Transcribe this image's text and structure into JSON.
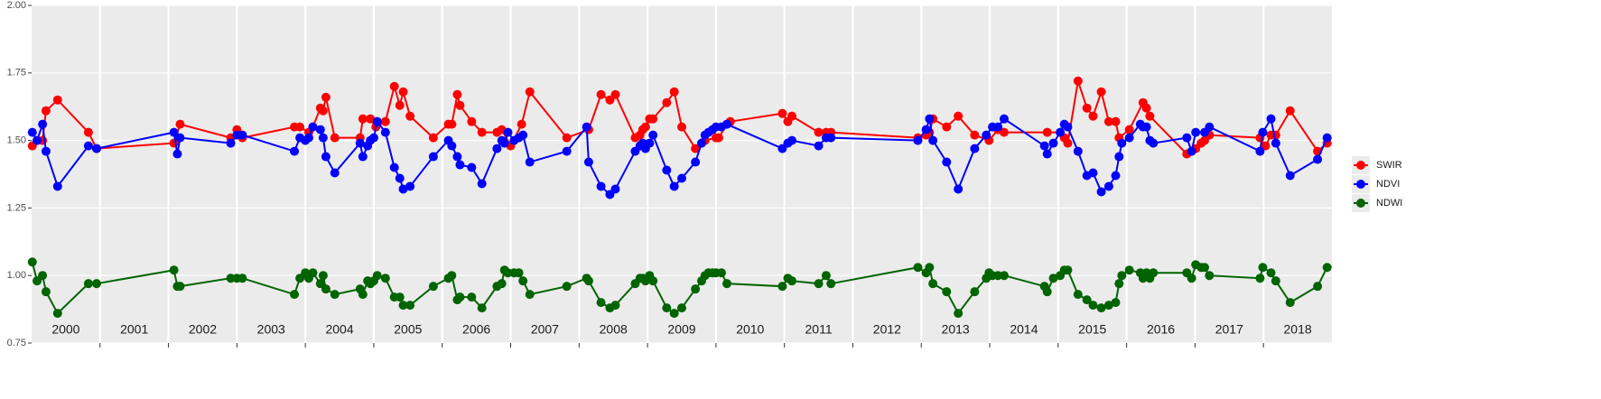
{
  "chart_data": {
    "type": "line",
    "xlim": [
      2000,
      2019
    ],
    "ylim": [
      0.75,
      2.0
    ],
    "yticks": [
      0.75,
      {
        "value": 1.0,
        "label": "1.00"
      },
      1.25,
      {
        "value": 1.5,
        "label": "1.50"
      },
      1.75,
      {
        "value": 2.0,
        "label": "2.00"
      }
    ],
    "xgrid": [
      2001,
      2002,
      2003,
      2004,
      2005,
      2006,
      2007,
      2008,
      2009,
      2010,
      2011,
      2012,
      2013,
      2014,
      2015,
      2016,
      2017,
      2018
    ],
    "xticks": [
      {
        "value": 2000.5,
        "label": "2000"
      },
      {
        "value": 2001.5,
        "label": "2001"
      },
      {
        "value": 2002.5,
        "label": "2002"
      },
      {
        "value": 2003.5,
        "label": "2003"
      },
      {
        "value": 2004.5,
        "label": "2004"
      },
      {
        "value": 2005.5,
        "label": "2005"
      },
      {
        "value": 2006.5,
        "label": "2006"
      },
      {
        "value": 2007.5,
        "label": "2007"
      },
      {
        "value": 2008.5,
        "label": "2008"
      },
      {
        "value": 2009.5,
        "label": "2009"
      },
      {
        "value": 2010.5,
        "label": "2010"
      },
      {
        "value": 2011.5,
        "label": "2011"
      },
      {
        "value": 2012.5,
        "label": "2012"
      },
      {
        "value": 2013.5,
        "label": "2013"
      },
      {
        "value": 2014.5,
        "label": "2014"
      },
      {
        "value": 2015.5,
        "label": "2015"
      },
      {
        "value": 2016.5,
        "label": "2016"
      },
      {
        "value": 2017.5,
        "label": "2017"
      },
      {
        "value": 2018.5,
        "label": "2018"
      }
    ],
    "grid": true,
    "legend": "right",
    "series": [
      {
        "name": "SWIR",
        "color": "#FF0000",
        "x": [
          2000.01,
          2000.08,
          2000.16,
          2000.21,
          2000.38,
          2000.83,
          2000.95,
          2002.08,
          2002.17,
          2002.91,
          2003.0,
          2003.08,
          2003.84,
          2003.92,
          2004.05,
          2004.11,
          2004.22,
          2004.26,
          2004.3,
          2004.43,
          2004.8,
          2004.84,
          2004.95,
          2005.03,
          2005.17,
          2005.3,
          2005.38,
          2005.43,
          2005.53,
          2005.87,
          2006.09,
          2006.14,
          2006.22,
          2006.26,
          2006.43,
          2006.58,
          2006.8,
          2006.87,
          2007.0,
          2007.16,
          2007.28,
          2007.82,
          2008.14,
          2008.32,
          2008.45,
          2008.53,
          2008.82,
          2008.89,
          2008.93,
          2008.97,
          2009.03,
          2009.08,
          2009.28,
          2009.39,
          2009.5,
          2009.7,
          2009.84,
          2010.0,
          2010.04,
          2010.16,
          2010.21,
          2010.97,
          2011.05,
          2011.11,
          2011.5,
          2011.61,
          2011.68,
          2012.95,
          2013.07,
          2013.12,
          2013.17,
          2013.37,
          2013.54,
          2013.78,
          2013.99,
          2014.12,
          2014.21,
          2014.84,
          2015.03,
          2015.09,
          2015.14,
          2015.29,
          2015.42,
          2015.51,
          2015.63,
          2015.74,
          2015.84,
          2015.89,
          2016.04,
          2016.24,
          2016.29,
          2016.34,
          2016.88,
          2017.01,
          2017.09,
          2017.14,
          2017.21,
          2017.95,
          2018.03,
          2018.11,
          2018.18,
          2018.39,
          2018.79,
          2018.93
        ],
        "values": [
          1.48,
          1.5,
          1.5,
          1.61,
          1.65,
          1.53,
          1.47,
          1.49,
          1.56,
          1.51,
          1.54,
          1.51,
          1.55,
          1.55,
          1.53,
          1.55,
          1.62,
          1.61,
          1.66,
          1.51,
          1.51,
          1.58,
          1.58,
          1.55,
          1.57,
          1.7,
          1.63,
          1.68,
          1.59,
          1.51,
          1.56,
          1.56,
          1.67,
          1.63,
          1.57,
          1.53,
          1.53,
          1.54,
          1.48,
          1.56,
          1.68,
          1.51,
          1.54,
          1.67,
          1.65,
          1.67,
          1.51,
          1.52,
          1.54,
          1.55,
          1.58,
          1.58,
          1.64,
          1.68,
          1.55,
          1.47,
          1.5,
          1.51,
          1.51,
          1.56,
          1.57,
          1.6,
          1.57,
          1.59,
          1.53,
          1.53,
          1.53,
          1.51,
          1.52,
          1.53,
          1.58,
          1.55,
          1.59,
          1.52,
          1.5,
          1.54,
          1.53,
          1.53,
          1.53,
          1.51,
          1.49,
          1.72,
          1.62,
          1.59,
          1.68,
          1.57,
          1.57,
          1.51,
          1.54,
          1.64,
          1.62,
          1.59,
          1.45,
          1.47,
          1.49,
          1.5,
          1.52,
          1.51,
          1.48,
          1.52,
          1.52,
          1.61,
          1.46,
          1.49
        ]
      },
      {
        "name": "NDVI",
        "color": "#0000FF",
        "x": [
          2000.01,
          2000.08,
          2000.16,
          2000.21,
          2000.38,
          2000.83,
          2000.95,
          2002.08,
          2002.13,
          2002.17,
          2002.91,
          2003.0,
          2003.08,
          2003.84,
          2003.92,
          2004.0,
          2004.05,
          2004.11,
          2004.22,
          2004.26,
          2004.3,
          2004.43,
          2004.8,
          2004.84,
          2004.91,
          2004.95,
          2005.0,
          2005.05,
          2005.17,
          2005.3,
          2005.38,
          2005.43,
          2005.53,
          2005.87,
          2006.09,
          2006.14,
          2006.22,
          2006.26,
          2006.43,
          2006.58,
          2006.8,
          2006.87,
          2006.91,
          2006.96,
          2007.05,
          2007.12,
          2007.18,
          2007.28,
          2007.82,
          2008.11,
          2008.14,
          2008.32,
          2008.45,
          2008.53,
          2008.82,
          2008.89,
          2008.93,
          2008.97,
          2009.03,
          2009.08,
          2009.28,
          2009.39,
          2009.5,
          2009.7,
          2009.79,
          2009.84,
          2009.89,
          2009.95,
          2010.0,
          2010.08,
          2010.16,
          2010.97,
          2011.05,
          2011.11,
          2011.5,
          2011.61,
          2011.68,
          2012.95,
          2013.07,
          2013.12,
          2013.17,
          2013.37,
          2013.54,
          2013.78,
          2013.95,
          2014.04,
          2014.12,
          2014.21,
          2014.8,
          2014.84,
          2014.93,
          2015.03,
          2015.09,
          2015.14,
          2015.29,
          2015.42,
          2015.51,
          2015.63,
          2015.74,
          2015.84,
          2015.89,
          2015.93,
          2016.04,
          2016.2,
          2016.24,
          2016.29,
          2016.34,
          2016.39,
          2016.88,
          2016.95,
          2017.01,
          2017.14,
          2017.21,
          2017.95,
          2017.99,
          2018.11,
          2018.18,
          2018.39,
          2018.79,
          2018.93
        ],
        "values": [
          1.53,
          1.5,
          1.56,
          1.46,
          1.33,
          1.48,
          1.47,
          1.53,
          1.45,
          1.51,
          1.49,
          1.52,
          1.52,
          1.46,
          1.51,
          1.5,
          1.51,
          1.55,
          1.54,
          1.51,
          1.44,
          1.38,
          1.49,
          1.44,
          1.48,
          1.5,
          1.51,
          1.57,
          1.53,
          1.4,
          1.36,
          1.32,
          1.33,
          1.44,
          1.5,
          1.48,
          1.44,
          1.41,
          1.4,
          1.34,
          1.47,
          1.5,
          1.49,
          1.53,
          1.5,
          1.51,
          1.52,
          1.42,
          1.46,
          1.55,
          1.42,
          1.33,
          1.3,
          1.32,
          1.46,
          1.48,
          1.49,
          1.47,
          1.49,
          1.52,
          1.39,
          1.33,
          1.36,
          1.42,
          1.49,
          1.52,
          1.53,
          1.54,
          1.55,
          1.55,
          1.56,
          1.47,
          1.49,
          1.5,
          1.48,
          1.51,
          1.51,
          1.5,
          1.54,
          1.58,
          1.5,
          1.42,
          1.32,
          1.47,
          1.52,
          1.55,
          1.55,
          1.58,
          1.48,
          1.45,
          1.49,
          1.53,
          1.56,
          1.55,
          1.46,
          1.37,
          1.38,
          1.31,
          1.33,
          1.37,
          1.44,
          1.49,
          1.51,
          1.56,
          1.55,
          1.55,
          1.5,
          1.49,
          1.51,
          1.46,
          1.53,
          1.53,
          1.55,
          1.46,
          1.53,
          1.58,
          1.49,
          1.37,
          1.43,
          1.51
        ]
      },
      {
        "name": "NDWI",
        "color": "#006400",
        "x": [
          2000.01,
          2000.08,
          2000.16,
          2000.21,
          2000.38,
          2000.83,
          2000.95,
          2002.08,
          2002.13,
          2002.17,
          2002.91,
          2003.0,
          2003.08,
          2003.84,
          2003.92,
          2004.0,
          2004.05,
          2004.11,
          2004.22,
          2004.26,
          2004.3,
          2004.43,
          2004.8,
          2004.84,
          2004.91,
          2004.95,
          2005.0,
          2005.05,
          2005.17,
          2005.3,
          2005.38,
          2005.43,
          2005.53,
          2005.87,
          2006.09,
          2006.14,
          2006.22,
          2006.26,
          2006.43,
          2006.58,
          2006.8,
          2006.87,
          2006.91,
          2006.96,
          2007.05,
          2007.12,
          2007.18,
          2007.28,
          2007.82,
          2008.11,
          2008.14,
          2008.32,
          2008.45,
          2008.53,
          2008.82,
          2008.89,
          2008.93,
          2008.97,
          2009.03,
          2009.08,
          2009.28,
          2009.39,
          2009.5,
          2009.7,
          2009.79,
          2009.84,
          2009.89,
          2009.95,
          2010.0,
          2010.08,
          2010.16,
          2010.97,
          2011.05,
          2011.11,
          2011.5,
          2011.61,
          2011.68,
          2012.95,
          2013.07,
          2013.12,
          2013.17,
          2013.37,
          2013.54,
          2013.78,
          2013.95,
          2013.99,
          2014.04,
          2014.12,
          2014.21,
          2014.8,
          2014.84,
          2014.93,
          2015.03,
          2015.09,
          2015.14,
          2015.29,
          2015.42,
          2015.51,
          2015.63,
          2015.74,
          2015.84,
          2015.89,
          2015.93,
          2016.04,
          2016.2,
          2016.24,
          2016.29,
          2016.34,
          2016.39,
          2016.88,
          2016.95,
          2017.01,
          2017.09,
          2017.14,
          2017.21,
          2017.95,
          2017.99,
          2018.11,
          2018.18,
          2018.39,
          2018.79,
          2018.93
        ],
        "values": [
          1.05,
          0.98,
          1.0,
          0.94,
          0.86,
          0.97,
          0.97,
          1.02,
          0.96,
          0.96,
          0.99,
          0.99,
          0.99,
          0.93,
          0.99,
          1.01,
          0.99,
          1.01,
          0.97,
          1.0,
          0.95,
          0.93,
          0.95,
          0.93,
          0.98,
          0.97,
          0.98,
          1.0,
          0.99,
          0.92,
          0.92,
          0.89,
          0.89,
          0.96,
          0.99,
          1.0,
          0.91,
          0.92,
          0.92,
          0.88,
          0.96,
          0.97,
          1.02,
          1.01,
          1.01,
          1.01,
          0.98,
          0.93,
          0.96,
          0.99,
          0.98,
          0.9,
          0.88,
          0.89,
          0.97,
          0.99,
          0.99,
          0.98,
          1.0,
          0.98,
          0.88,
          0.86,
          0.88,
          0.95,
          0.98,
          1.0,
          1.01,
          1.01,
          1.01,
          1.01,
          0.97,
          0.96,
          0.99,
          0.98,
          0.97,
          1.0,
          0.97,
          1.03,
          1.01,
          1.03,
          0.97,
          0.94,
          0.86,
          0.94,
          0.99,
          1.01,
          1.0,
          1.0,
          1.0,
          0.96,
          0.94,
          0.99,
          1.0,
          1.02,
          1.02,
          0.93,
          0.91,
          0.89,
          0.88,
          0.89,
          0.9,
          0.97,
          1.0,
          1.02,
          1.01,
          0.99,
          1.01,
          0.99,
          1.01,
          1.01,
          0.99,
          1.04,
          1.03,
          1.03,
          1.0,
          0.99,
          1.03,
          1.01,
          0.98,
          0.9,
          0.96,
          1.03
        ]
      }
    ]
  }
}
